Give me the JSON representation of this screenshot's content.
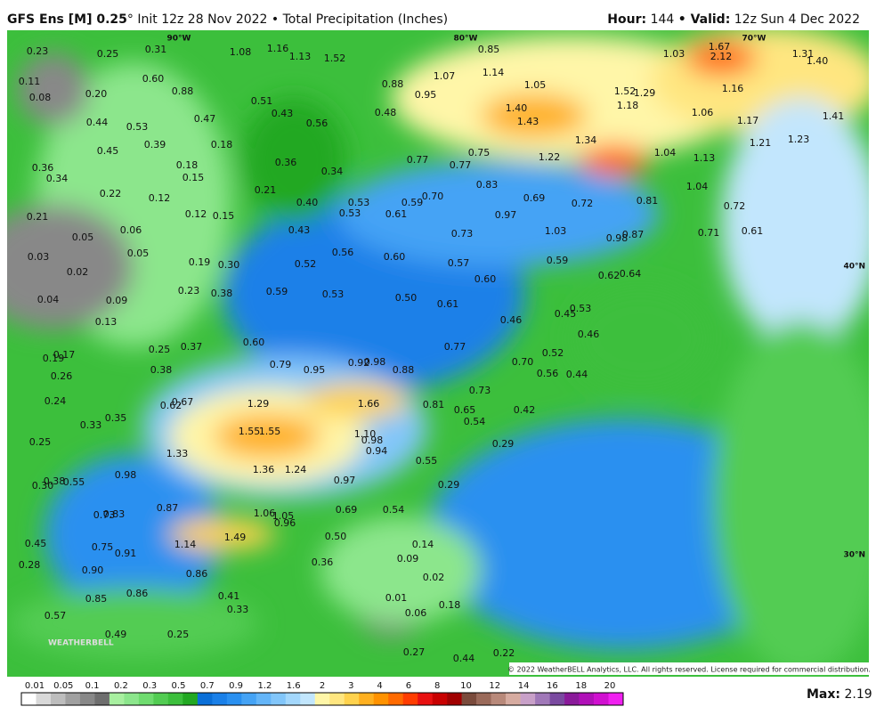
{
  "header": {
    "title_bold": "GFS Ens [M] 0.25",
    "title_rest": "° Init 12z 28 Nov 2022 • Total Precipitation (Inches)",
    "hour_label": "Hour:",
    "hour": "144",
    "valid_label": "• Valid:",
    "valid": "12z Sun 4 Dec 2022"
  },
  "map": {
    "grid_labels": [
      "90°W",
      "80°W",
      "70°W",
      "40°N",
      "30°N"
    ],
    "stations": [
      "0.23",
      "0.25",
      "0.31",
      "1.08",
      "1.16",
      "1.13",
      "1.52",
      "0.85",
      "1.67",
      "2.12",
      "1.03",
      "1.31",
      "1.40",
      "0.11",
      "0.08",
      "0.60",
      "0.88",
      "1.07",
      "1.14",
      "0.88",
      "0.95",
      "1.05",
      "1.52",
      "1.29",
      "1.16",
      "0.20",
      "0.51",
      "0.43",
      "0.48",
      "1.40",
      "1.43",
      "1.18",
      "1.06",
      "1.17",
      "1.41",
      "0.44",
      "0.53",
      "0.47",
      "0.56",
      "0.45",
      "0.39",
      "0.18",
      "1.34",
      "1.21",
      "1.23",
      "1.22",
      "1.04",
      "1.13",
      "0.36",
      "0.34",
      "0.18",
      "0.15",
      "0.36",
      "0.34",
      "0.77",
      "0.77",
      "0.75",
      "0.22",
      "0.12",
      "0.21",
      "0.40",
      "0.53",
      "0.59",
      "0.70",
      "0.83",
      "0.69",
      "0.72",
      "0.81",
      "1.04",
      "0.72",
      "0.21",
      "0.12",
      "0.15",
      "0.53",
      "0.61",
      "0.97",
      "0.05",
      "0.06",
      "0.43",
      "0.73",
      "1.03",
      "0.98",
      "0.87",
      "0.71",
      "0.61",
      "0.03",
      "0.05",
      "0.19",
      "0.30",
      "0.52",
      "0.56",
      "0.60",
      "0.57",
      "0.59",
      "0.02",
      "0.62",
      "0.64",
      "0.60",
      "0.04",
      "0.09",
      "0.23",
      "0.38",
      "0.59",
      "0.53",
      "0.50",
      "0.61",
      "0.53",
      "0.45",
      "0.46",
      "0.13",
      "0.46",
      "0.60",
      "0.25",
      "0.37",
      "0.77",
      "0.52",
      "0.19",
      "0.17",
      "0.38",
      "0.79",
      "0.95",
      "0.92",
      "0.98",
      "0.88",
      "0.70",
      "0.56",
      "0.44",
      "0.26",
      "0.73",
      "0.24",
      "0.62",
      "0.67",
      "1.29",
      "1.66",
      "0.81",
      "0.65",
      "0.42",
      "0.35",
      "0.33",
      "0.54",
      "1.55",
      "1.55",
      "1.10",
      "0.98",
      "0.94",
      "0.25",
      "0.29",
      "1.33",
      "1.36",
      "1.24",
      "0.55",
      "0.98",
      "0.97",
      "0.38",
      "0.55",
      "0.30",
      "0.29",
      "0.87",
      "0.69",
      "0.54",
      "0.73",
      "0.83",
      "1.06",
      "1.05",
      "0.96",
      "0.50",
      "1.14",
      "1.49",
      "0.75",
      "0.91",
      "0.45",
      "0.14",
      "0.36",
      "0.09",
      "0.28",
      "0.90",
      "0.86",
      "0.02",
      "0.85",
      "0.86",
      "0.41",
      "0.01",
      "0.33",
      "0.06",
      "0.18",
      "0.57",
      "0.49",
      "0.25",
      "0.27",
      "0.44",
      "0.22"
    ],
    "logo": "WEATHERBELL",
    "copyright": "© 2022 WeatherBELL Analytics, LLC. All rights reserved. License required for commercial distribution."
  },
  "colorbar": {
    "labels": [
      "0.01",
      "0.05",
      "0.1",
      "0.2",
      "0.3",
      "0.5",
      "0.7",
      "0.9",
      "1.2",
      "1.6",
      "2",
      "3",
      "4",
      "6",
      "8",
      "10",
      "12",
      "14",
      "16",
      "18",
      "20"
    ],
    "colors": [
      "#ffffff",
      "#d9d9d9",
      "#bdbdbd",
      "#a0a0a0",
      "#888888",
      "#6e6e6e",
      "#a8f0a0",
      "#8ce68c",
      "#6fdc6f",
      "#52cc52",
      "#3cbf3c",
      "#22a822",
      "#0a6fd8",
      "#1a80e8",
      "#2a90f0",
      "#45a3f5",
      "#64b5f8",
      "#82c6fa",
      "#a3d7fc",
      "#c2e6fd",
      "#fff6a8",
      "#ffe680",
      "#ffd24d",
      "#ffb020",
      "#ff9200",
      "#ff6a00",
      "#ff3c00",
      "#e81010",
      "#c80000",
      "#a00000",
      "#7a4b3c",
      "#9a6a5a",
      "#b8897a",
      "#d6aba0",
      "#c8a0c8",
      "#a078b8",
      "#7a4aa0",
      "#8a1a9a",
      "#b010b8",
      "#d010d0",
      "#f020f0"
    ],
    "max_label": "Max:",
    "max": "2.19"
  }
}
